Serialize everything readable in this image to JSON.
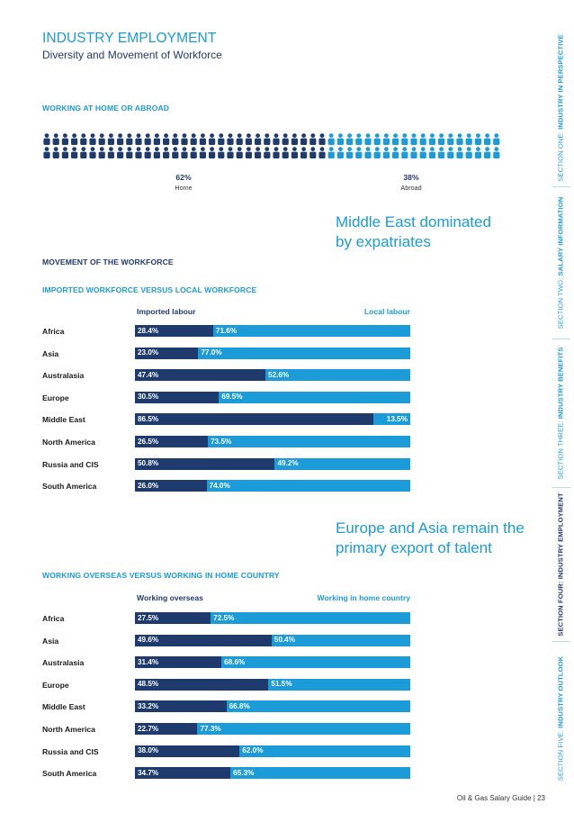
{
  "title": "INDUSTRY EMPLOYMENT",
  "subtitle": "Diversity and Movement of Workforce",
  "home_abroad": {
    "heading": "WORKING AT HOME OR ABROAD",
    "home_pct": "62%",
    "home_label": "Home",
    "abroad_pct": "38%",
    "abroad_label": "Abroad",
    "home_share": 0.62,
    "colors": {
      "home": "#1f3a6d",
      "abroad": "#1b9bd7"
    }
  },
  "callouts": {
    "middle_east": [
      "Middle East dominated",
      "by expatriates"
    ],
    "europe_asia": [
      "Europe and Asia remain the",
      "primary export of talent"
    ]
  },
  "movement_heading": "MOVEMENT OF THE WORKFORCE",
  "chart_data": [
    {
      "type": "bar",
      "orientation": "horizontal",
      "stacked": true,
      "title": "IMPORTED WORKFORCE VERSUS LOCAL WORKFORCE",
      "categories": [
        "Africa",
        "Asia",
        "Australasia",
        "Europe",
        "Middle East",
        "North America",
        "Russia and CIS",
        "South America"
      ],
      "series": [
        {
          "name": "Imported labour",
          "color": "#1f3a6d",
          "values": [
            28.4,
            23.0,
            47.4,
            30.5,
            86.5,
            26.5,
            50.8,
            26.0
          ]
        },
        {
          "name": "Local labour",
          "color": "#1b9bd7",
          "values": [
            71.6,
            77.0,
            52.6,
            69.5,
            13.5,
            73.5,
            49.2,
            74.0
          ]
        }
      ],
      "xlim": [
        0,
        100
      ],
      "unit": "%"
    },
    {
      "type": "bar",
      "orientation": "horizontal",
      "stacked": true,
      "title": "WORKING OVERSEAS VERSUS WORKING IN HOME COUNTRY",
      "categories": [
        "Africa",
        "Asia",
        "Australasia",
        "Europe",
        "Middle East",
        "North America",
        "Russia and CIS",
        "South America"
      ],
      "series": [
        {
          "name": "Working overseas",
          "color": "#1f3a6d",
          "values": [
            27.5,
            49.6,
            31.4,
            48.5,
            33.2,
            22.7,
            38.0,
            34.7
          ]
        },
        {
          "name": "Working in home country",
          "color": "#1b9bd7",
          "values": [
            72.5,
            50.4,
            68.6,
            51.5,
            66.8,
            77.3,
            62.0,
            65.3
          ]
        }
      ],
      "xlim": [
        0,
        100
      ],
      "unit": "%"
    }
  ],
  "sidebar": [
    {
      "prefix": "SECTION ONE: ",
      "name": "INDUSTRY IN PERSPECTIVE",
      "active": false
    },
    {
      "prefix": "SECTION TWO: ",
      "name": "SALARY INFORMATION",
      "active": false
    },
    {
      "prefix": "SECTION THREE: ",
      "name": "INDUSTRY BENEFITS",
      "active": false
    },
    {
      "prefix": "SECTION FOUR: ",
      "name": "INDUSTRY EMPLOYMENT",
      "active": true
    },
    {
      "prefix": "SECTION FIVE: ",
      "name": "INDUSTRY OUTLOOK",
      "active": false
    }
  ],
  "footer": "Oil & Gas Salary Guide | 23"
}
